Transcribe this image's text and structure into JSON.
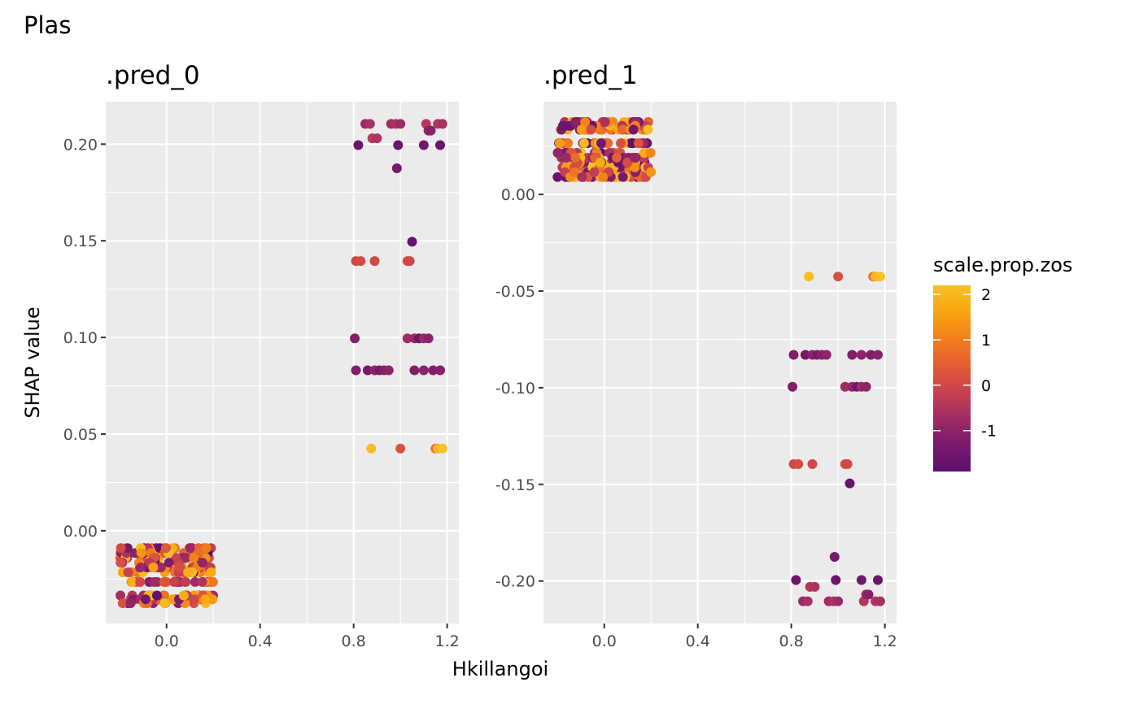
{
  "chart_data": {
    "type": "scatter",
    "title": "Plas",
    "xlabel": "Hkillangoi",
    "ylabel": "SHAP value",
    "grid": true,
    "x_ticks": [
      "0.0",
      "0.4",
      "0.8",
      "1.2"
    ],
    "x_tick_values": [
      0.0,
      0.4,
      0.8,
      1.2
    ],
    "legend": {
      "title": "scale.prop.zos",
      "placement": "right",
      "type": "colorbar",
      "range": [
        -1.9,
        2.2
      ],
      "ticks": [
        "2",
        "1",
        "0",
        "-1"
      ],
      "tick_values": [
        2,
        1,
        0,
        -1
      ],
      "colors": [
        "#5c0f6e",
        "#7a1a6c",
        "#a02c64",
        "#c7414f",
        "#e35d34",
        "#f2801b",
        "#f8a410",
        "#f7c127"
      ]
    },
    "panels": [
      {
        "label": ".pred_0",
        "xlim": [
          -0.26,
          1.25
        ],
        "ylim": [
          -0.048,
          0.222
        ],
        "y_ticks": [
          "0.00",
          "0.05",
          "0.10",
          "0.15",
          "0.20"
        ],
        "y_tick_values": [
          0.0,
          0.05,
          0.1,
          0.15,
          0.2
        ],
        "clusters": [
          {
            "x_range": [
              -0.2,
              0.2
            ],
            "y_values": [
              -0.009,
              -0.0115,
              -0.014,
              -0.0165,
              -0.019,
              -0.0215,
              -0.0265,
              -0.0335,
              -0.0355,
              -0.0375
            ],
            "n": 240
          }
        ],
        "points": [
          {
            "x": 0.82,
            "y": 0.1995,
            "c": -1.6
          },
          {
            "x": 0.85,
            "y": 0.2105,
            "c": -0.8
          },
          {
            "x": 0.87,
            "y": 0.2105,
            "c": -0.6
          },
          {
            "x": 0.88,
            "y": 0.203,
            "c": -0.4
          },
          {
            "x": 0.9,
            "y": 0.203,
            "c": -0.5
          },
          {
            "x": 0.96,
            "y": 0.2105,
            "c": -0.7
          },
          {
            "x": 0.98,
            "y": 0.2105,
            "c": -0.5
          },
          {
            "x": 0.99,
            "y": 0.1995,
            "c": -1.6
          },
          {
            "x": 1.0,
            "y": 0.2105,
            "c": -0.8
          },
          {
            "x": 0.985,
            "y": 0.1875,
            "c": -1.4
          },
          {
            "x": 1.1,
            "y": 0.1995,
            "c": -1.5
          },
          {
            "x": 1.11,
            "y": 0.2105,
            "c": -0.4
          },
          {
            "x": 1.12,
            "y": 0.207,
            "c": -0.9
          },
          {
            "x": 1.13,
            "y": 0.207,
            "c": -1.1
          },
          {
            "x": 1.16,
            "y": 0.2105,
            "c": -0.5
          },
          {
            "x": 1.17,
            "y": 0.1995,
            "c": -1.6
          },
          {
            "x": 1.18,
            "y": 0.2105,
            "c": -0.6
          },
          {
            "x": 1.05,
            "y": 0.1495,
            "c": -1.7
          },
          {
            "x": 0.81,
            "y": 0.1395,
            "c": 0.0
          },
          {
            "x": 0.83,
            "y": 0.1395,
            "c": 0.1
          },
          {
            "x": 0.89,
            "y": 0.1395,
            "c": 0.0
          },
          {
            "x": 1.03,
            "y": 0.1395,
            "c": 0.1
          },
          {
            "x": 1.04,
            "y": 0.1395,
            "c": 0.0
          },
          {
            "x": 0.805,
            "y": 0.0995,
            "c": -1.2
          },
          {
            "x": 1.03,
            "y": 0.0995,
            "c": -0.7
          },
          {
            "x": 1.06,
            "y": 0.0995,
            "c": -0.9
          },
          {
            "x": 1.08,
            "y": 0.0995,
            "c": -1.5
          },
          {
            "x": 1.1,
            "y": 0.0995,
            "c": -0.8
          },
          {
            "x": 1.12,
            "y": 0.0995,
            "c": -1.0
          },
          {
            "x": 0.81,
            "y": 0.083,
            "c": -1.2
          },
          {
            "x": 0.86,
            "y": 0.083,
            "c": -1.4
          },
          {
            "x": 0.89,
            "y": 0.083,
            "c": -1.0
          },
          {
            "x": 0.91,
            "y": 0.083,
            "c": -1.3
          },
          {
            "x": 0.93,
            "y": 0.083,
            "c": -1.1
          },
          {
            "x": 0.95,
            "y": 0.083,
            "c": -1.0
          },
          {
            "x": 1.06,
            "y": 0.083,
            "c": -1.2
          },
          {
            "x": 1.1,
            "y": 0.083,
            "c": -1.0
          },
          {
            "x": 1.14,
            "y": 0.083,
            "c": -1.2
          },
          {
            "x": 1.17,
            "y": 0.083,
            "c": -1.1
          },
          {
            "x": 0.875,
            "y": 0.0425,
            "c": 2.1
          },
          {
            "x": 1.0,
            "y": 0.0425,
            "c": 0.2
          },
          {
            "x": 1.15,
            "y": 0.0425,
            "c": 0.8
          },
          {
            "x": 1.16,
            "y": 0.0425,
            "c": 2.0
          },
          {
            "x": 1.18,
            "y": 0.0425,
            "c": 2.2
          }
        ]
      },
      {
        "label": ".pred_1",
        "xlim": [
          -0.26,
          1.25
        ],
        "ylim": [
          -0.222,
          0.048
        ],
        "y_ticks": [
          "0.00",
          "-0.05",
          "-0.10",
          "-0.15",
          "-0.20"
        ],
        "y_tick_values": [
          0.0,
          -0.05,
          -0.1,
          -0.15,
          -0.2
        ],
        "clusters": [
          {
            "x_range": [
              -0.2,
              0.2
            ],
            "y_values": [
              0.009,
              0.0115,
              0.014,
              0.0165,
              0.019,
              0.0215,
              0.0265,
              0.0335,
              0.0355,
              0.0375
            ],
            "n": 240
          }
        ],
        "points": [
          {
            "x": 0.82,
            "y": -0.1995,
            "c": -1.6
          },
          {
            "x": 0.85,
            "y": -0.2105,
            "c": -0.8
          },
          {
            "x": 0.87,
            "y": -0.2105,
            "c": -0.6
          },
          {
            "x": 0.88,
            "y": -0.203,
            "c": -0.4
          },
          {
            "x": 0.9,
            "y": -0.203,
            "c": -0.5
          },
          {
            "x": 0.96,
            "y": -0.2105,
            "c": -0.7
          },
          {
            "x": 0.98,
            "y": -0.2105,
            "c": -0.5
          },
          {
            "x": 0.99,
            "y": -0.1995,
            "c": -1.6
          },
          {
            "x": 1.0,
            "y": -0.2105,
            "c": -0.8
          },
          {
            "x": 0.985,
            "y": -0.1875,
            "c": -1.4
          },
          {
            "x": 1.1,
            "y": -0.1995,
            "c": -1.5
          },
          {
            "x": 1.11,
            "y": -0.2105,
            "c": -0.4
          },
          {
            "x": 1.12,
            "y": -0.207,
            "c": -0.9
          },
          {
            "x": 1.13,
            "y": -0.207,
            "c": -1.1
          },
          {
            "x": 1.16,
            "y": -0.2105,
            "c": -0.5
          },
          {
            "x": 1.17,
            "y": -0.1995,
            "c": -1.6
          },
          {
            "x": 1.18,
            "y": -0.2105,
            "c": -0.6
          },
          {
            "x": 1.05,
            "y": -0.1495,
            "c": -1.7
          },
          {
            "x": 0.81,
            "y": -0.1395,
            "c": 0.0
          },
          {
            "x": 0.83,
            "y": -0.1395,
            "c": 0.1
          },
          {
            "x": 0.89,
            "y": -0.1395,
            "c": 0.0
          },
          {
            "x": 1.03,
            "y": -0.1395,
            "c": 0.1
          },
          {
            "x": 1.04,
            "y": -0.1395,
            "c": 0.0
          },
          {
            "x": 0.805,
            "y": -0.0995,
            "c": -1.2
          },
          {
            "x": 1.03,
            "y": -0.0995,
            "c": -0.7
          },
          {
            "x": 1.06,
            "y": -0.0995,
            "c": -0.9
          },
          {
            "x": 1.08,
            "y": -0.0995,
            "c": -1.5
          },
          {
            "x": 1.1,
            "y": -0.0995,
            "c": -0.8
          },
          {
            "x": 1.12,
            "y": -0.0995,
            "c": -1.0
          },
          {
            "x": 0.81,
            "y": -0.083,
            "c": -1.2
          },
          {
            "x": 0.86,
            "y": -0.083,
            "c": -1.4
          },
          {
            "x": 0.89,
            "y": -0.083,
            "c": -1.0
          },
          {
            "x": 0.91,
            "y": -0.083,
            "c": -1.3
          },
          {
            "x": 0.93,
            "y": -0.083,
            "c": -1.1
          },
          {
            "x": 0.95,
            "y": -0.083,
            "c": -1.0
          },
          {
            "x": 1.06,
            "y": -0.083,
            "c": -1.2
          },
          {
            "x": 1.1,
            "y": -0.083,
            "c": -1.0
          },
          {
            "x": 1.14,
            "y": -0.083,
            "c": -1.2
          },
          {
            "x": 1.17,
            "y": -0.083,
            "c": -1.1
          },
          {
            "x": 0.875,
            "y": -0.0425,
            "c": 2.1
          },
          {
            "x": 1.0,
            "y": -0.0425,
            "c": 0.2
          },
          {
            "x": 1.15,
            "y": -0.0425,
            "c": 0.8
          },
          {
            "x": 1.16,
            "y": -0.0425,
            "c": 2.0
          },
          {
            "x": 1.18,
            "y": -0.0425,
            "c": 2.2
          }
        ]
      }
    ]
  }
}
